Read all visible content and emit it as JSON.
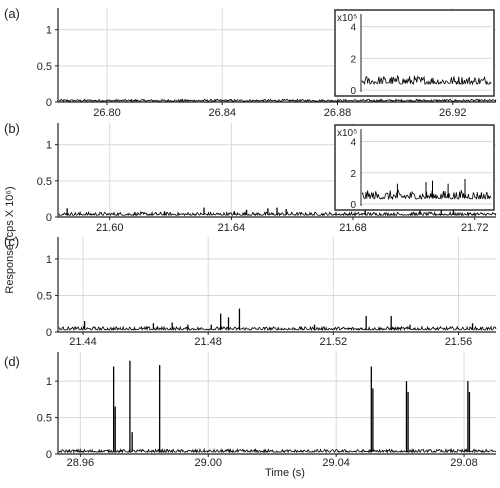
{
  "chart_data": {
    "type": "line",
    "ylabel": "Response (cps X 10⁶)",
    "xlabel": "Time (s)",
    "panels": [
      {
        "label": "(a)",
        "xlim": [
          26.783,
          26.935
        ],
        "ylim": [
          0,
          1.3
        ],
        "xticks": [
          26.8,
          26.84,
          26.88,
          26.92
        ],
        "xtick_labels": [
          "26.80",
          "26.84",
          "26.88",
          "26.92"
        ],
        "yticks": [
          0,
          0.5,
          1
        ],
        "ytick_labels": [
          "0",
          "0.5",
          "1"
        ],
        "baseline": 0.015,
        "noise": 0.012,
        "spikes": [],
        "inset": {
          "ylabel": "x10⁵",
          "ylim": [
            0,
            4.8
          ],
          "yticks": [
            0,
            2,
            4
          ],
          "ytick_labels": [
            "0",
            "2",
            "4"
          ],
          "baseline": 0.45,
          "noise": 0.25,
          "spikes": []
        }
      },
      {
        "label": "(b)",
        "xlim": [
          21.583,
          21.727
        ],
        "ylim": [
          0,
          1.3
        ],
        "xticks": [
          21.6,
          21.64,
          21.68,
          21.72
        ],
        "xtick_labels": [
          "21.60",
          "21.64",
          "21.68",
          "21.72"
        ],
        "yticks": [
          0,
          0.5,
          1
        ],
        "ytick_labels": [
          "0",
          "0.5",
          "1"
        ],
        "baseline": 0.03,
        "noise": 0.02,
        "spikes": [
          {
            "x": 21.586,
            "y": 0.12
          },
          {
            "x": 21.618,
            "y": 0.08
          },
          {
            "x": 21.631,
            "y": 0.13
          },
          {
            "x": 21.641,
            "y": 0.08
          },
          {
            "x": 21.645,
            "y": 0.1
          },
          {
            "x": 21.652,
            "y": 0.12
          },
          {
            "x": 21.655,
            "y": 0.13
          },
          {
            "x": 21.658,
            "y": 0.11
          },
          {
            "x": 21.684,
            "y": 0.12
          },
          {
            "x": 21.702,
            "y": 0.1
          },
          {
            "x": 21.709,
            "y": 0.12
          },
          {
            "x": 21.713,
            "y": 0.13
          }
        ],
        "inset": {
          "ylabel": "x10⁵",
          "ylim": [
            0,
            4.8
          ],
          "yticks": [
            0,
            2,
            4
          ],
          "ytick_labels": [
            "0",
            "2",
            "4"
          ],
          "baseline": 0.4,
          "noise": 0.25,
          "spikes": [
            {
              "f": 0.28,
              "y": 1.3
            },
            {
              "f": 0.5,
              "y": 1.4
            },
            {
              "f": 0.55,
              "y": 1.5
            },
            {
              "f": 0.67,
              "y": 1.3
            },
            {
              "f": 0.8,
              "y": 1.6
            }
          ]
        }
      },
      {
        "label": "(c)",
        "xlim": [
          21.432,
          21.572
        ],
        "ylim": [
          0,
          1.3
        ],
        "xticks": [
          21.44,
          21.48,
          21.52,
          21.56
        ],
        "xtick_labels": [
          "21.44",
          "21.48",
          "21.52",
          "21.56"
        ],
        "yticks": [
          0,
          0.5,
          1
        ],
        "ytick_labels": [
          "0",
          "0.5",
          "1"
        ],
        "baseline": 0.035,
        "noise": 0.02,
        "spikes": [
          {
            "x": 21.4405,
            "y": 0.15
          },
          {
            "x": 21.4625,
            "y": 0.12
          },
          {
            "x": 21.4685,
            "y": 0.13
          },
          {
            "x": 21.4735,
            "y": 0.1
          },
          {
            "x": 21.481,
            "y": 0.1
          },
          {
            "x": 21.484,
            "y": 0.25
          },
          {
            "x": 21.4865,
            "y": 0.2
          },
          {
            "x": 21.49,
            "y": 0.32
          },
          {
            "x": 21.514,
            "y": 0.1
          },
          {
            "x": 21.5305,
            "y": 0.22
          },
          {
            "x": 21.5385,
            "y": 0.22
          },
          {
            "x": 21.5445,
            "y": 0.1
          },
          {
            "x": 21.5645,
            "y": 0.12
          }
        ]
      },
      {
        "label": "(d)",
        "xlim": [
          28.953,
          29.09
        ],
        "ylim": [
          0,
          1.4
        ],
        "xticks": [
          28.96,
          29.0,
          29.04,
          29.08
        ],
        "xtick_labels": [
          "28.96",
          "29.00",
          "29.04",
          "29.08"
        ],
        "yticks": [
          0,
          0.5,
          1
        ],
        "ytick_labels": [
          "0",
          "0.5",
          "1"
        ],
        "baseline": 0.03,
        "noise": 0.018,
        "spikes": [
          {
            "x": 28.9704,
            "y": 1.2
          },
          {
            "x": 28.9709,
            "y": 0.65
          },
          {
            "x": 28.9755,
            "y": 1.28
          },
          {
            "x": 28.9762,
            "y": 0.3
          },
          {
            "x": 28.9848,
            "y": 1.22
          },
          {
            "x": 29.051,
            "y": 1.2
          },
          {
            "x": 29.0515,
            "y": 0.9
          },
          {
            "x": 29.062,
            "y": 1.0
          },
          {
            "x": 29.0625,
            "y": 0.85
          },
          {
            "x": 29.0812,
            "y": 1.0
          },
          {
            "x": 29.0817,
            "y": 0.85
          }
        ]
      }
    ]
  }
}
